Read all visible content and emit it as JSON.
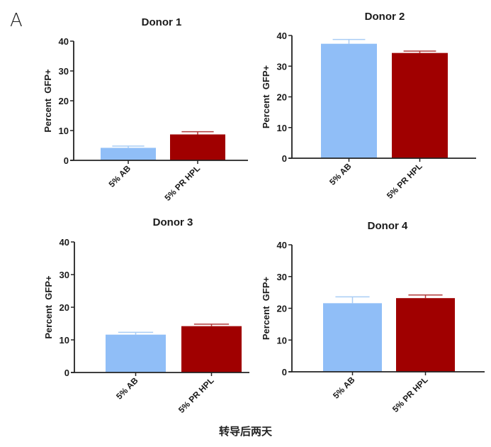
{
  "figure": {
    "panel_label": "A",
    "caption": "转导后两天"
  },
  "colors": {
    "ab": "#90BEF7",
    "ab_err": "#A9CDF5",
    "hpl": "#A00000",
    "hpl_err": "#B23A3A",
    "axis": "#222222",
    "text": "#1a1a1a"
  },
  "chart_data": [
    {
      "type": "bar",
      "title": "Donor 1",
      "xlabel": "",
      "ylabel": "Percent  GFP+",
      "categories": [
        "5% AB",
        "5% PR HPL"
      ],
      "values": [
        4.2,
        8.7
      ],
      "error_upper": [
        0.6,
        0.9
      ],
      "ylim": [
        0,
        40
      ],
      "yticks": [
        0,
        10,
        20,
        30,
        40
      ],
      "grid": false,
      "legend": "none"
    },
    {
      "type": "bar",
      "title": "Donor 2",
      "xlabel": "",
      "ylabel": "Percent  GFP+",
      "categories": [
        "5% AB",
        "5% PR HPL"
      ],
      "values": [
        37.3,
        34.3
      ],
      "error_upper": [
        1.4,
        0.6
      ],
      "ylim": [
        0,
        40
      ],
      "yticks": [
        0,
        10,
        20,
        30,
        40
      ],
      "grid": false,
      "legend": "none"
    },
    {
      "type": "bar",
      "title": "Donor 3",
      "xlabel": "",
      "ylabel": "Percent  GFP+",
      "categories": [
        "5% AB",
        "5% PR HPL"
      ],
      "values": [
        11.6,
        14.2
      ],
      "error_upper": [
        0.7,
        0.6
      ],
      "ylim": [
        0,
        40
      ],
      "yticks": [
        0,
        10,
        20,
        30,
        40
      ],
      "grid": false,
      "legend": "none"
    },
    {
      "type": "bar",
      "title": "Donor 4",
      "xlabel": "",
      "ylabel": "Percent  GFP+",
      "categories": [
        "5% AB",
        "5% PR HPL"
      ],
      "values": [
        21.6,
        23.2
      ],
      "error_upper": [
        2.0,
        1.0
      ],
      "ylim": [
        0,
        40
      ],
      "yticks": [
        0,
        10,
        20,
        30,
        40
      ],
      "grid": false,
      "legend": "none"
    }
  ]
}
